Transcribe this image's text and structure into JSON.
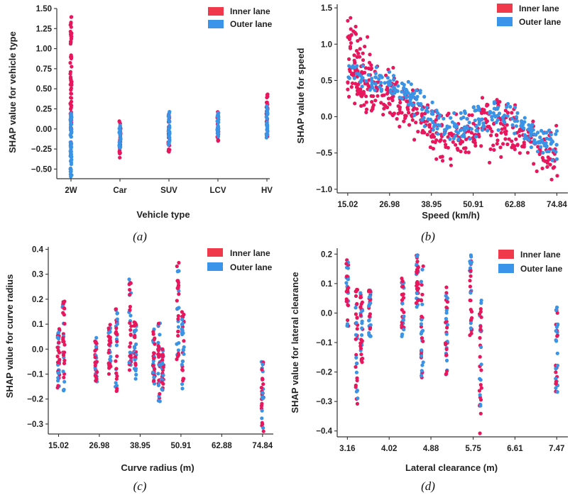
{
  "colors": {
    "inner": "#e8175d",
    "outer": "#3b93e6",
    "inner_legend": "#f03a4c",
    "outer_legend": "#3a95ea"
  },
  "legend": {
    "inner": "Inner lane",
    "outer": "Outer lane"
  },
  "chart_data": [
    {
      "id": "a",
      "type": "scatter",
      "caption": "(a)",
      "xlabel": "Vehicle type",
      "ylabel": "SHAP value for vehicle type",
      "categories": [
        "2W",
        "Car",
        "SUV",
        "LCV",
        "HV"
      ],
      "ylim": [
        -0.62,
        1.5
      ],
      "yticks": [
        1.5,
        1.25,
        1.0,
        0.75,
        0.5,
        0.25,
        0.0,
        -0.25,
        -0.5
      ],
      "ytick_labels": [
        "1.50",
        "1.25",
        "1.00",
        "0.75",
        "0.50",
        "0.25",
        "0.00",
        "−0.25",
        "−0.50"
      ],
      "series": [
        {
          "name": "Inner lane",
          "ranges": [
            [
              -0.2,
              1.4
            ],
            [
              -0.36,
              0.1
            ],
            [
              -0.3,
              0.2
            ],
            [
              -0.15,
              0.22
            ],
            [
              -0.1,
              0.45
            ]
          ]
        },
        {
          "name": "Outer lane",
          "ranges": [
            [
              -0.6,
              0.2
            ],
            [
              -0.25,
              0.05
            ],
            [
              -0.2,
              0.23
            ],
            [
              -0.1,
              0.2
            ],
            [
              -0.12,
              0.3
            ]
          ]
        }
      ]
    },
    {
      "id": "b",
      "type": "scatter",
      "caption": "(b)",
      "xlabel": "Speed (km/h)",
      "ylabel": "SHAP value for speed",
      "xlim": [
        12,
        78
      ],
      "ylim": [
        -1.05,
        1.55
      ],
      "xticks": [
        15.02,
        26.98,
        38.95,
        50.91,
        62.88,
        74.84
      ],
      "xtick_labels": [
        "15.02",
        "26.98",
        "38.95",
        "50.91",
        "62.88",
        "74.84"
      ],
      "yticks": [
        1.5,
        1.0,
        0.5,
        0.0,
        -0.5,
        -1.0
      ],
      "ytick_labels": [
        "1.5",
        "1.0",
        "0.5",
        "0.0",
        "−0.5",
        "−1.0"
      ],
      "trend": [
        [
          15,
          0.55
        ],
        [
          20,
          0.4
        ],
        [
          27,
          0.25
        ],
        [
          33,
          0.15
        ],
        [
          39,
          -0.15
        ],
        [
          45,
          -0.3
        ],
        [
          51,
          -0.25
        ],
        [
          57,
          -0.1
        ],
        [
          63,
          -0.2
        ],
        [
          70,
          -0.5
        ],
        [
          75,
          -0.55
        ]
      ]
    },
    {
      "id": "c",
      "type": "scatter",
      "caption": "(c)",
      "xlabel": "Curve radius (m)",
      "ylabel": "SHAP value for curve radius",
      "xlim": [
        12,
        78
      ],
      "ylim": [
        -0.34,
        0.41
      ],
      "xticks": [
        15.02,
        26.98,
        38.95,
        50.91,
        62.88,
        74.84
      ],
      "xtick_labels": [
        "15.02",
        "26.98",
        "38.95",
        "50.91",
        "62.88",
        "74.84"
      ],
      "yticks": [
        0.4,
        0.3,
        0.2,
        0.1,
        0.0,
        -0.1,
        -0.2,
        -0.3
      ],
      "ytick_labels": [
        "0.4",
        "0.3",
        "0.2",
        "0.1",
        "0.0",
        "−0.1",
        "−0.2",
        "−0.3"
      ],
      "columns": [
        {
          "x": 15.0,
          "lo": -0.17,
          "hi": 0.1
        },
        {
          "x": 16.5,
          "lo": -0.18,
          "hi": 0.2
        },
        {
          "x": 26.0,
          "lo": -0.13,
          "hi": 0.06
        },
        {
          "x": 30.0,
          "lo": -0.1,
          "hi": 0.1
        },
        {
          "x": 32.0,
          "lo": -0.17,
          "hi": 0.17
        },
        {
          "x": 36.0,
          "lo": -0.1,
          "hi": 0.28
        },
        {
          "x": 37.5,
          "lo": -0.12,
          "hi": 0.12
        },
        {
          "x": 43.0,
          "lo": -0.14,
          "hi": 0.08
        },
        {
          "x": 44.5,
          "lo": -0.22,
          "hi": 0.14
        },
        {
          "x": 45.5,
          "lo": -0.18,
          "hi": 0.0
        },
        {
          "x": 50.0,
          "lo": -0.05,
          "hi": 0.37
        },
        {
          "x": 51.5,
          "lo": -0.16,
          "hi": 0.15
        },
        {
          "x": 74.84,
          "lo": -0.33,
          "hi": -0.04
        }
      ]
    },
    {
      "id": "d",
      "type": "scatter",
      "caption": "(d)",
      "xlabel": "Lateral clearance (m)",
      "ylabel": "SHAP value for lateral clearance",
      "xlim": [
        2.95,
        7.7
      ],
      "ylim": [
        -0.42,
        0.22
      ],
      "xticks": [
        3.16,
        4.02,
        4.88,
        5.75,
        6.61,
        7.47
      ],
      "xtick_labels": [
        "3.16",
        "4.02",
        "4.88",
        "5.75",
        "6.61",
        "7.47"
      ],
      "yticks": [
        0.2,
        0.1,
        0.0,
        -0.1,
        -0.2,
        -0.3,
        -0.4
      ],
      "ytick_labels": [
        "0.2",
        "0.1",
        "0.0",
        "−0.1",
        "−0.2",
        "−0.3",
        "−0.4"
      ],
      "columns": [
        {
          "x": 3.16,
          "lo": -0.05,
          "hi": 0.18
        },
        {
          "x": 3.35,
          "lo": -0.31,
          "hi": 0.08
        },
        {
          "x": 3.45,
          "lo": -0.17,
          "hi": 0.07
        },
        {
          "x": 3.62,
          "lo": -0.08,
          "hi": 0.09
        },
        {
          "x": 4.3,
          "lo": -0.08,
          "hi": 0.12
        },
        {
          "x": 4.6,
          "lo": 0.02,
          "hi": 0.2
        },
        {
          "x": 4.7,
          "lo": -0.22,
          "hi": 0.16
        },
        {
          "x": 5.2,
          "lo": -0.21,
          "hi": 0.09
        },
        {
          "x": 5.7,
          "lo": -0.1,
          "hi": 0.2
        },
        {
          "x": 5.9,
          "lo": -0.41,
          "hi": 0.05
        },
        {
          "x": 7.47,
          "lo": -0.27,
          "hi": 0.03
        }
      ]
    }
  ]
}
